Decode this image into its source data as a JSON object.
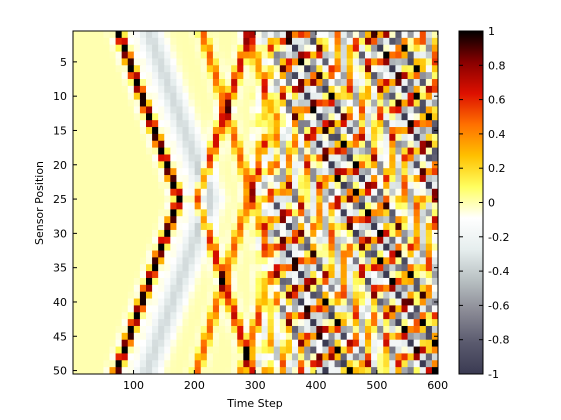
{
  "chart_data": {
    "type": "heatmap",
    "title": "",
    "xlabel": "Time Step",
    "ylabel": "Sensor Position",
    "xlim": [
      0.5,
      600.5
    ],
    "ylim": [
      0.5,
      50.5
    ],
    "y_reversed": true,
    "x_ticks": [
      100,
      200,
      300,
      400,
      500,
      600
    ],
    "y_ticks": [
      5,
      10,
      15,
      20,
      25,
      30,
      35,
      40,
      45,
      50
    ],
    "colorbar": {
      "range": [
        -1,
        1
      ],
      "ticks": [
        -1,
        -0.8,
        -0.6,
        -0.4,
        -0.2,
        0,
        0.2,
        0.4,
        0.6,
        0.8,
        1
      ],
      "tick_labels": [
        "-1",
        "-0.8",
        "-0.6",
        "-0.4",
        "-0.2",
        "0",
        "0.2",
        "0.4",
        "0.6",
        "0.8",
        "1"
      ],
      "colormap": "diverging bone-to-hot",
      "colors_low_to_high": [
        "#3a3a52",
        "#5a5a6e",
        "#8a8a95",
        "#b8c0c2",
        "#e6eeee",
        "#ffffff",
        "#ffff60",
        "#ffc000",
        "#ff7000",
        "#dd1000",
        "#880000",
        "#000000"
      ]
    },
    "grid": false
  }
}
